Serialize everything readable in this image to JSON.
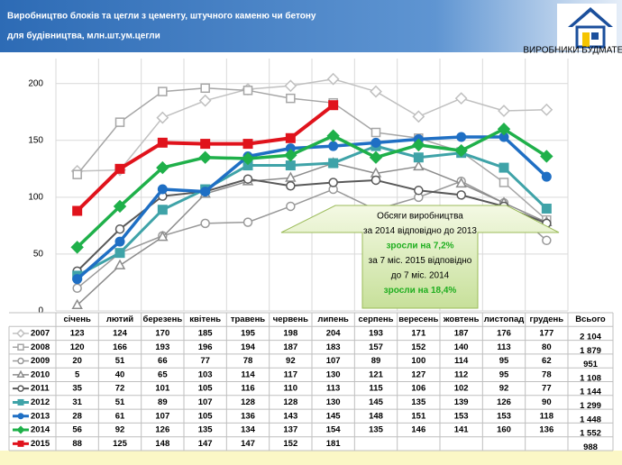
{
  "chart_data": {
    "type": "line",
    "title_lines": [
      "Виробництво блоків та цегли з цементу, штучного каменю чи бетону",
      "для будівництва, млн.шт.ум.цегли"
    ],
    "logo_text": "ВИРОБНИКИ БУДМАТЕРІАЛІВ",
    "categories": [
      "січень",
      "лютий",
      "березень",
      "квітень",
      "травень",
      "червень",
      "липень",
      "серпень",
      "вересень",
      "жовтень",
      "листопад",
      "грудень"
    ],
    "total_header": "Всього",
    "ylim": [
      0,
      222
    ],
    "yticks": [
      0,
      50,
      100,
      150,
      200
    ],
    "grid": true,
    "series": [
      {
        "name": "2007",
        "color": "#c0c0c0",
        "marker": "diamond",
        "open": true,
        "width": 1.5,
        "values": [
          123,
          124,
          170,
          185,
          195,
          198,
          204,
          193,
          171,
          187,
          176,
          177
        ],
        "total": "2 104"
      },
      {
        "name": "2008",
        "color": "#a6a6a6",
        "marker": "square",
        "open": true,
        "width": 1.5,
        "values": [
          120,
          166,
          193,
          196,
          194,
          187,
          183,
          157,
          152,
          140,
          113,
          80
        ],
        "total": "1 879"
      },
      {
        "name": "2009",
        "color": "#999999",
        "marker": "circle",
        "open": true,
        "width": 1.5,
        "values": [
          20,
          51,
          66,
          77,
          78,
          92,
          107,
          89,
          100,
          114,
          95,
          62
        ],
        "total": "951"
      },
      {
        "name": "2010",
        "color": "#8c8c8c",
        "marker": "triangle",
        "open": true,
        "width": 1.5,
        "values": [
          5,
          40,
          65,
          103,
          114,
          117,
          130,
          121,
          127,
          112,
          95,
          78
        ],
        "total": "1 108"
      },
      {
        "name": "2011",
        "color": "#595959",
        "marker": "circle",
        "open": true,
        "width": 2,
        "values": [
          35,
          72,
          101,
          105,
          116,
          110,
          113,
          115,
          106,
          102,
          92,
          77
        ],
        "total": "1 144"
      },
      {
        "name": "2012",
        "color": "#3fa3a8",
        "marker": "square",
        "open": false,
        "width": 3,
        "values": [
          31,
          51,
          89,
          107,
          128,
          128,
          130,
          145,
          135,
          139,
          126,
          90
        ],
        "total": "1 299"
      },
      {
        "name": "2013",
        "color": "#1f6fc4",
        "marker": "circle",
        "open": false,
        "width": 3.5,
        "values": [
          28,
          61,
          107,
          105,
          136,
          143,
          145,
          148,
          151,
          153,
          153,
          118
        ],
        "total": "1 448"
      },
      {
        "name": "2014",
        "color": "#1fb04a",
        "marker": "diamond",
        "open": false,
        "width": 3.5,
        "values": [
          56,
          92,
          126,
          135,
          134,
          137,
          154,
          135,
          146,
          141,
          160,
          136
        ],
        "total": "1 552"
      },
      {
        "name": "2015",
        "color": "#e0131c",
        "marker": "square",
        "open": false,
        "width": 4,
        "values": [
          88,
          125,
          148,
          147,
          147,
          152,
          181,
          null,
          null,
          null,
          null,
          null
        ],
        "total": "988"
      }
    ],
    "annotation": {
      "lines": [
        "Обсяги виробництва",
        "за 2014 відповідно до 2013",
        "зросли на 7,2%",
        "за 7 міс. 2015 відповідно",
        "до 7 міс. 2014",
        "зросли на 18,4%"
      ],
      "highlight": [
        2,
        5
      ]
    }
  }
}
